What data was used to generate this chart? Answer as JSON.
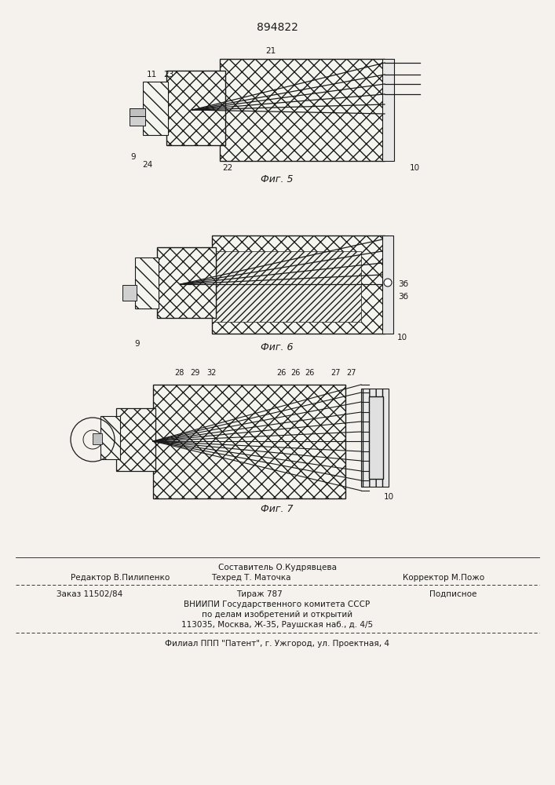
{
  "patent_number": "894822",
  "bg_color": "#f5f2ee",
  "line_color": "#1a1a1a",
  "fig5_label": "Фиг. 5",
  "fig6_label": "Фиг. 6",
  "fig7_label": "Фиг. 7",
  "footer_составитель": "Составитель О.Кудрявцева",
  "footer_редактор": "Редактор В.Пилипенко",
  "footer_техред": "Техред Т. Маточка",
  "footer_корректор": "Корректор М.Пожо",
  "footer_заказ": "Заказ 11502/84",
  "footer_тираж": "Тираж 787",
  "footer_подписное": "Подписное",
  "footer_вниипи": "ВНИИПИ Государственного комитета СССР",
  "footer_поделам": "по делам изобретений и открытий",
  "footer_адрес": "113035, Москва, Ж-35, Раушская наб., д. 4/5",
  "footer_филиал": "Филиал ППП \"Патент\", г. Ужгород, ул. Проектная, 4"
}
